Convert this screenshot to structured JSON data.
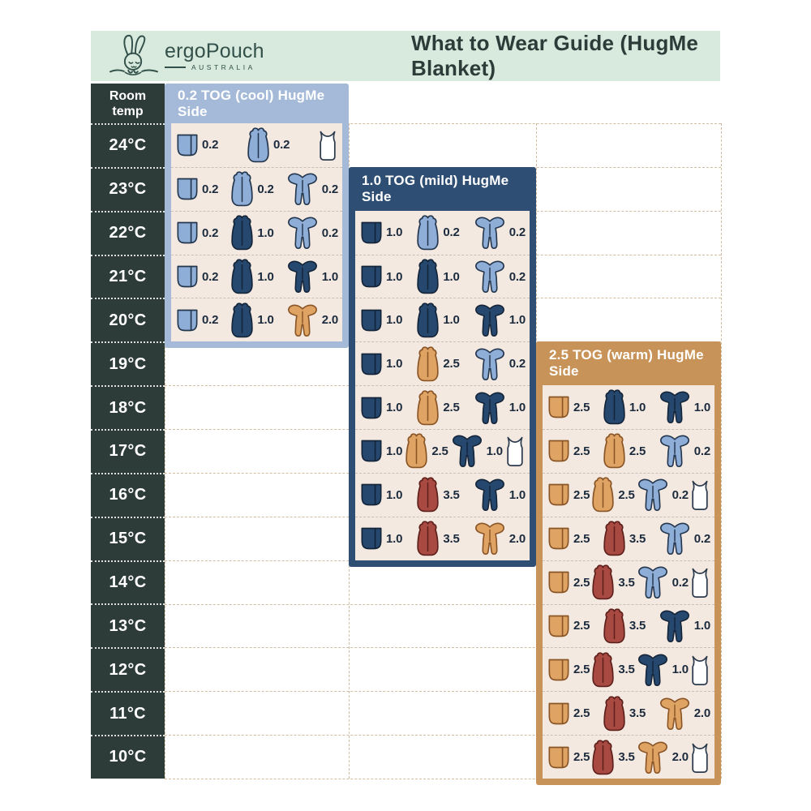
{
  "header": {
    "title": "What to Wear Guide (HugMe Blanket)",
    "bg": "#d7eadd",
    "logo": {
      "brand": "ergoPouch",
      "country": "AUSTRALIA"
    }
  },
  "palette": {
    "page_bg": "#ffffff",
    "temp_column_bg": "#2d3b39",
    "panel_body_bg": "#f4e9e0",
    "grid_dash": "#d2bda1",
    "value_text": "#1b2b3d",
    "icon_colors": {
      "lightblue": {
        "fill": "#8eaed7",
        "stroke": "#24364e"
      },
      "navy": {
        "fill": "#26486e",
        "stroke": "#14253a"
      },
      "tan": {
        "fill": "#dfa464",
        "stroke": "#8a5526"
      },
      "red": {
        "fill": "#a84a41",
        "stroke": "#5e201c"
      },
      "white": {
        "fill": "#ffffff",
        "stroke": "#2b3a4d"
      }
    }
  },
  "chart_data": {
    "type": "table",
    "title": "What to Wear Guide (HugMe Blanket)",
    "row_header": "Room temp",
    "temperatures": [
      "24°C",
      "23°C",
      "22°C",
      "21°C",
      "20°C",
      "19°C",
      "18°C",
      "17°C",
      "16°C",
      "15°C",
      "14°C",
      "13°C",
      "12°C",
      "11°C",
      "10°C"
    ],
    "panels": [
      {
        "title": "0.2 TOG (cool) HugMe Side",
        "tog": "0.2",
        "condition": "cool",
        "color": "#a5bad8",
        "rows": [
          {
            "temp": "24°C",
            "items": [
              {
                "icon": "blanket",
                "color": "lightblue",
                "tog": "0.2"
              },
              {
                "icon": "sleep-sack",
                "color": "lightblue",
                "tog": "0.2"
              },
              {
                "icon": "singlet",
                "color": "white",
                "tog": ""
              }
            ]
          },
          {
            "temp": "23°C",
            "items": [
              {
                "icon": "blanket",
                "color": "lightblue",
                "tog": "0.2"
              },
              {
                "icon": "sleep-sack",
                "color": "lightblue",
                "tog": "0.2"
              },
              {
                "icon": "romper",
                "color": "lightblue",
                "tog": "0.2"
              }
            ]
          },
          {
            "temp": "22°C",
            "items": [
              {
                "icon": "blanket",
                "color": "lightblue",
                "tog": "0.2"
              },
              {
                "icon": "sleep-sack",
                "color": "navy",
                "tog": "1.0"
              },
              {
                "icon": "romper",
                "color": "lightblue",
                "tog": "0.2"
              }
            ]
          },
          {
            "temp": "21°C",
            "items": [
              {
                "icon": "blanket",
                "color": "lightblue",
                "tog": "0.2"
              },
              {
                "icon": "sleep-sack",
                "color": "navy",
                "tog": "1.0"
              },
              {
                "icon": "romper",
                "color": "navy",
                "tog": "1.0"
              }
            ]
          },
          {
            "temp": "20°C",
            "items": [
              {
                "icon": "blanket",
                "color": "lightblue",
                "tog": "0.2"
              },
              {
                "icon": "sleep-sack",
                "color": "navy",
                "tog": "1.0"
              },
              {
                "icon": "romper",
                "color": "tan",
                "tog": "2.0"
              }
            ]
          }
        ]
      },
      {
        "title": "1.0 TOG (mild) HugMe Side",
        "tog": "1.0",
        "condition": "mild",
        "color": "#2f4e74",
        "rows": [
          {
            "temp": "22°C",
            "items": [
              {
                "icon": "blanket",
                "color": "navy",
                "tog": "1.0"
              },
              {
                "icon": "sleep-sack",
                "color": "lightblue",
                "tog": "0.2"
              },
              {
                "icon": "romper",
                "color": "lightblue",
                "tog": "0.2"
              }
            ]
          },
          {
            "temp": "21°C",
            "items": [
              {
                "icon": "blanket",
                "color": "navy",
                "tog": "1.0"
              },
              {
                "icon": "sleep-sack",
                "color": "navy",
                "tog": "1.0"
              },
              {
                "icon": "romper",
                "color": "lightblue",
                "tog": "0.2"
              }
            ]
          },
          {
            "temp": "20°C",
            "items": [
              {
                "icon": "blanket",
                "color": "navy",
                "tog": "1.0"
              },
              {
                "icon": "sleep-sack",
                "color": "navy",
                "tog": "1.0"
              },
              {
                "icon": "romper",
                "color": "navy",
                "tog": "1.0"
              }
            ]
          },
          {
            "temp": "19°C",
            "items": [
              {
                "icon": "blanket",
                "color": "navy",
                "tog": "1.0"
              },
              {
                "icon": "sleep-sack",
                "color": "tan",
                "tog": "2.5"
              },
              {
                "icon": "romper",
                "color": "lightblue",
                "tog": "0.2"
              }
            ]
          },
          {
            "temp": "18°C",
            "items": [
              {
                "icon": "blanket",
                "color": "navy",
                "tog": "1.0"
              },
              {
                "icon": "sleep-sack",
                "color": "tan",
                "tog": "2.5"
              },
              {
                "icon": "romper",
                "color": "navy",
                "tog": "1.0"
              }
            ]
          },
          {
            "temp": "17°C",
            "items": [
              {
                "icon": "blanket",
                "color": "navy",
                "tog": "1.0"
              },
              {
                "icon": "sleep-sack",
                "color": "tan",
                "tog": "2.5"
              },
              {
                "icon": "romper",
                "color": "navy",
                "tog": "1.0"
              },
              {
                "icon": "singlet",
                "color": "white",
                "tog": ""
              }
            ]
          },
          {
            "temp": "16°C",
            "items": [
              {
                "icon": "blanket",
                "color": "navy",
                "tog": "1.0"
              },
              {
                "icon": "sleep-sack",
                "color": "red",
                "tog": "3.5"
              },
              {
                "icon": "romper",
                "color": "navy",
                "tog": "1.0"
              }
            ]
          },
          {
            "temp": "15°C",
            "items": [
              {
                "icon": "blanket",
                "color": "navy",
                "tog": "1.0"
              },
              {
                "icon": "sleep-sack",
                "color": "red",
                "tog": "3.5"
              },
              {
                "icon": "romper",
                "color": "tan",
                "tog": "2.0"
              }
            ]
          }
        ]
      },
      {
        "title": "2.5 TOG (warm) HugMe Side",
        "tog": "2.5",
        "condition": "warm",
        "color": "#c89358",
        "rows": [
          {
            "temp": "18°C",
            "items": [
              {
                "icon": "blanket",
                "color": "tan",
                "tog": "2.5"
              },
              {
                "icon": "sleep-sack",
                "color": "navy",
                "tog": "1.0"
              },
              {
                "icon": "romper",
                "color": "navy",
                "tog": "1.0"
              }
            ]
          },
          {
            "temp": "17°C",
            "items": [
              {
                "icon": "blanket",
                "color": "tan",
                "tog": "2.5"
              },
              {
                "icon": "sleep-sack",
                "color": "tan",
                "tog": "2.5"
              },
              {
                "icon": "romper",
                "color": "lightblue",
                "tog": "0.2"
              }
            ]
          },
          {
            "temp": "16°C",
            "items": [
              {
                "icon": "blanket",
                "color": "tan",
                "tog": "2.5"
              },
              {
                "icon": "sleep-sack",
                "color": "tan",
                "tog": "2.5"
              },
              {
                "icon": "romper",
                "color": "lightblue",
                "tog": "0.2"
              },
              {
                "icon": "singlet",
                "color": "white",
                "tog": ""
              }
            ]
          },
          {
            "temp": "15°C",
            "items": [
              {
                "icon": "blanket",
                "color": "tan",
                "tog": "2.5"
              },
              {
                "icon": "sleep-sack",
                "color": "red",
                "tog": "3.5"
              },
              {
                "icon": "romper",
                "color": "lightblue",
                "tog": "0.2"
              }
            ]
          },
          {
            "temp": "14°C",
            "items": [
              {
                "icon": "blanket",
                "color": "tan",
                "tog": "2.5"
              },
              {
                "icon": "sleep-sack",
                "color": "red",
                "tog": "3.5"
              },
              {
                "icon": "romper",
                "color": "lightblue",
                "tog": "0.2"
              },
              {
                "icon": "singlet",
                "color": "white",
                "tog": ""
              }
            ]
          },
          {
            "temp": "13°C",
            "items": [
              {
                "icon": "blanket",
                "color": "tan",
                "tog": "2.5"
              },
              {
                "icon": "sleep-sack",
                "color": "red",
                "tog": "3.5"
              },
              {
                "icon": "romper",
                "color": "navy",
                "tog": "1.0"
              }
            ]
          },
          {
            "temp": "12°C",
            "items": [
              {
                "icon": "blanket",
                "color": "tan",
                "tog": "2.5"
              },
              {
                "icon": "sleep-sack",
                "color": "red",
                "tog": "3.5"
              },
              {
                "icon": "romper",
                "color": "navy",
                "tog": "1.0"
              },
              {
                "icon": "singlet",
                "color": "white",
                "tog": ""
              }
            ]
          },
          {
            "temp": "11°C",
            "items": [
              {
                "icon": "blanket",
                "color": "tan",
                "tog": "2.5"
              },
              {
                "icon": "sleep-sack",
                "color": "red",
                "tog": "3.5"
              },
              {
                "icon": "romper",
                "color": "tan",
                "tog": "2.0"
              }
            ]
          },
          {
            "temp": "10°C",
            "items": [
              {
                "icon": "blanket",
                "color": "tan",
                "tog": "2.5"
              },
              {
                "icon": "sleep-sack",
                "color": "red",
                "tog": "3.5"
              },
              {
                "icon": "romper",
                "color": "tan",
                "tog": "2.0"
              },
              {
                "icon": "singlet",
                "color": "white",
                "tog": ""
              }
            ]
          }
        ]
      }
    ]
  }
}
